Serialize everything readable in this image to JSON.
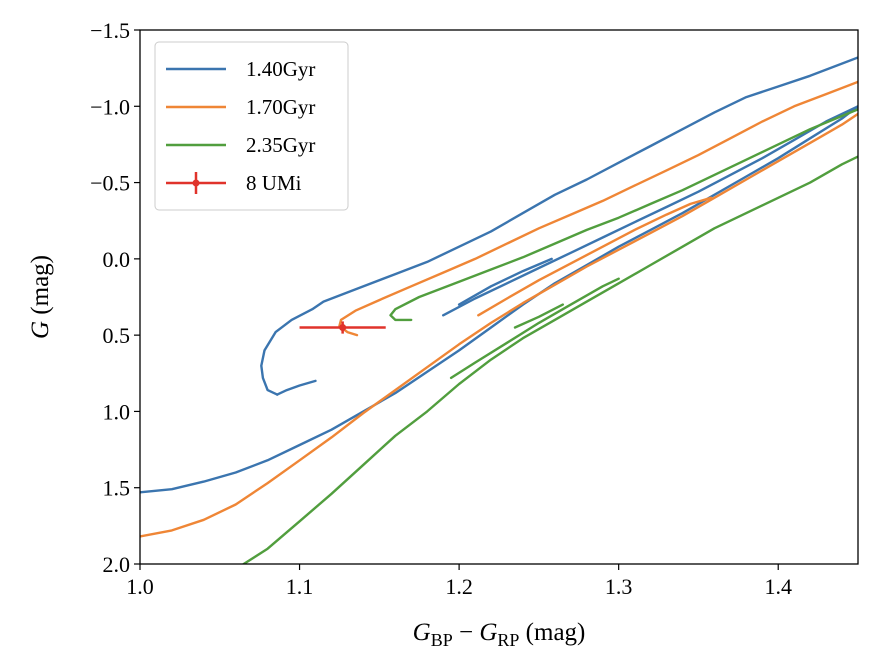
{
  "chart_data": {
    "type": "line",
    "title": "",
    "xlabel": {
      "main": "G",
      "sub1": "BP",
      "minus": " − ",
      "main2": "G",
      "sub2": "RP",
      "unit": " (mag)"
    },
    "ylabel": {
      "main": "G",
      "unit": " (mag)"
    },
    "xlim": [
      1.0,
      1.45
    ],
    "ylim": [
      2.0,
      -1.5
    ],
    "y_inverted": true,
    "grid": false,
    "legend_position": "top-left",
    "x_ticks": [
      1.0,
      1.1,
      1.2,
      1.3,
      1.4
    ],
    "x_tick_labels": [
      "1.0",
      "1.1",
      "1.2",
      "1.3",
      "1.4"
    ],
    "y_ticks": [
      -1.5,
      -1.0,
      -0.5,
      0.0,
      0.5,
      1.0,
      1.5,
      2.0
    ],
    "y_tick_labels": [
      "−1.5",
      "−1.0",
      "−0.5",
      "0.0",
      "0.5",
      "1.0",
      "1.5",
      "2.0"
    ],
    "series": [
      {
        "name": "1.40Gyr",
        "color": "#3b75af",
        "segments": [
          [
            [
              1.0,
              1.53
            ],
            [
              1.02,
              1.51
            ],
            [
              1.04,
              1.46
            ],
            [
              1.06,
              1.4
            ],
            [
              1.08,
              1.32
            ],
            [
              1.1,
              1.22
            ],
            [
              1.12,
              1.12
            ],
            [
              1.14,
              1.0
            ],
            [
              1.16,
              0.88
            ],
            [
              1.18,
              0.74
            ],
            [
              1.2,
              0.6
            ],
            [
              1.22,
              0.45
            ],
            [
              1.24,
              0.3
            ],
            [
              1.26,
              0.16
            ],
            [
              1.28,
              0.04
            ],
            [
              1.3,
              -0.08
            ],
            [
              1.32,
              -0.19
            ],
            [
              1.34,
              -0.3
            ],
            [
              1.36,
              -0.42
            ],
            [
              1.38,
              -0.54
            ],
            [
              1.4,
              -0.66
            ],
            [
              1.42,
              -0.79
            ],
            [
              1.44,
              -0.92
            ],
            [
              1.45,
              -1.0
            ]
          ],
          [
            [
              1.086,
              0.89
            ],
            [
              1.08,
              0.86
            ],
            [
              1.077,
              0.78
            ],
            [
              1.076,
              0.7
            ],
            [
              1.078,
              0.6
            ],
            [
              1.085,
              0.48
            ],
            [
              1.095,
              0.4
            ],
            [
              1.108,
              0.33
            ],
            [
              1.115,
              0.28
            ],
            [
              1.135,
              0.2
            ],
            [
              1.16,
              0.1
            ],
            [
              1.18,
              0.02
            ],
            [
              1.2,
              -0.08
            ],
            [
              1.22,
              -0.18
            ],
            [
              1.24,
              -0.3
            ],
            [
              1.26,
              -0.42
            ],
            [
              1.28,
              -0.52
            ],
            [
              1.3,
              -0.63
            ],
            [
              1.32,
              -0.74
            ],
            [
              1.34,
              -0.85
            ],
            [
              1.36,
              -0.96
            ],
            [
              1.38,
              -1.06
            ],
            [
              1.4,
              -1.13
            ],
            [
              1.42,
              -1.2
            ],
            [
              1.45,
              -1.32
            ]
          ],
          [
            [
              1.086,
              0.89
            ],
            [
              1.092,
              0.86
            ],
            [
              1.1,
              0.83
            ],
            [
              1.11,
              0.8
            ]
          ],
          [
            [
              1.19,
              0.37
            ],
            [
              1.21,
              0.26
            ],
            [
              1.23,
              0.16
            ],
            [
              1.25,
              0.06
            ],
            [
              1.27,
              -0.04
            ],
            [
              1.29,
              -0.14
            ],
            [
              1.31,
              -0.24
            ],
            [
              1.33,
              -0.34
            ],
            [
              1.35,
              -0.44
            ],
            [
              1.37,
              -0.55
            ],
            [
              1.39,
              -0.66
            ],
            [
              1.41,
              -0.78
            ],
            [
              1.43,
              -0.9
            ],
            [
              1.45,
              -1.0
            ]
          ],
          [
            [
              1.2,
              0.3
            ],
            [
              1.22,
              0.18
            ],
            [
              1.24,
              0.08
            ],
            [
              1.258,
              0.0
            ]
          ]
        ]
      },
      {
        "name": "1.70Gyr",
        "color": "#ef8636",
        "segments": [
          [
            [
              1.0,
              1.82
            ],
            [
              1.02,
              1.78
            ],
            [
              1.04,
              1.71
            ],
            [
              1.06,
              1.61
            ],
            [
              1.08,
              1.47
            ],
            [
              1.1,
              1.32
            ],
            [
              1.12,
              1.17
            ],
            [
              1.14,
              1.01
            ],
            [
              1.16,
              0.86
            ],
            [
              1.18,
              0.71
            ],
            [
              1.2,
              0.56
            ],
            [
              1.22,
              0.42
            ],
            [
              1.24,
              0.29
            ],
            [
              1.26,
              0.17
            ],
            [
              1.28,
              0.05
            ],
            [
              1.3,
              -0.06
            ],
            [
              1.32,
              -0.17
            ],
            [
              1.34,
              -0.28
            ],
            [
              1.36,
              -0.4
            ],
            [
              1.38,
              -0.52
            ],
            [
              1.4,
              -0.64
            ],
            [
              1.42,
              -0.76
            ],
            [
              1.44,
              -0.88
            ],
            [
              1.45,
              -0.95
            ]
          ],
          [
            [
              1.136,
              0.5
            ],
            [
              1.13,
              0.48
            ],
            [
              1.125,
              0.44
            ],
            [
              1.126,
              0.4
            ],
            [
              1.135,
              0.34
            ],
            [
              1.15,
              0.27
            ],
            [
              1.17,
              0.18
            ],
            [
              1.19,
              0.09
            ],
            [
              1.21,
              0.0
            ],
            [
              1.23,
              -0.1
            ],
            [
              1.25,
              -0.2
            ],
            [
              1.27,
              -0.29
            ],
            [
              1.29,
              -0.38
            ],
            [
              1.31,
              -0.48
            ],
            [
              1.33,
              -0.58
            ],
            [
              1.35,
              -0.68
            ],
            [
              1.37,
              -0.79
            ],
            [
              1.39,
              -0.9
            ],
            [
              1.41,
              -1.0
            ],
            [
              1.43,
              -1.08
            ],
            [
              1.45,
              -1.16
            ]
          ],
          [
            [
              1.212,
              0.37
            ],
            [
              1.23,
              0.26
            ],
            [
              1.25,
              0.14
            ],
            [
              1.27,
              0.03
            ],
            [
              1.29,
              -0.08
            ],
            [
              1.31,
              -0.19
            ],
            [
              1.33,
              -0.29
            ],
            [
              1.345,
              -0.36
            ],
            [
              1.358,
              -0.4
            ]
          ]
        ]
      },
      {
        "name": "2.35Gyr",
        "color": "#519e3e",
        "segments": [
          [
            [
              1.065,
              2.0
            ],
            [
              1.08,
              1.9
            ],
            [
              1.1,
              1.72
            ],
            [
              1.12,
              1.54
            ],
            [
              1.14,
              1.35
            ],
            [
              1.16,
              1.16
            ],
            [
              1.18,
              1.0
            ],
            [
              1.2,
              0.82
            ],
            [
              1.22,
              0.66
            ],
            [
              1.24,
              0.52
            ],
            [
              1.26,
              0.4
            ],
            [
              1.28,
              0.28
            ],
            [
              1.3,
              0.16
            ],
            [
              1.32,
              0.04
            ],
            [
              1.34,
              -0.08
            ],
            [
              1.36,
              -0.2
            ],
            [
              1.38,
              -0.3
            ],
            [
              1.4,
              -0.4
            ],
            [
              1.42,
              -0.5
            ],
            [
              1.44,
              -0.62
            ],
            [
              1.45,
              -0.67
            ]
          ],
          [
            [
              1.17,
              0.4
            ],
            [
              1.16,
              0.4
            ],
            [
              1.157,
              0.37
            ],
            [
              1.16,
              0.33
            ],
            [
              1.175,
              0.25
            ],
            [
              1.2,
              0.15
            ],
            [
              1.22,
              0.07
            ],
            [
              1.24,
              -0.01
            ],
            [
              1.26,
              -0.1
            ],
            [
              1.28,
              -0.19
            ],
            [
              1.3,
              -0.27
            ],
            [
              1.32,
              -0.36
            ],
            [
              1.34,
              -0.45
            ],
            [
              1.36,
              -0.55
            ],
            [
              1.38,
              -0.65
            ],
            [
              1.4,
              -0.75
            ],
            [
              1.42,
              -0.85
            ],
            [
              1.45,
              -0.98
            ]
          ],
          [
            [
              1.195,
              0.78
            ],
            [
              1.21,
              0.68
            ],
            [
              1.23,
              0.55
            ],
            [
              1.25,
              0.42
            ],
            [
              1.27,
              0.3
            ],
            [
              1.29,
              0.18
            ],
            [
              1.3,
              0.13
            ]
          ],
          [
            [
              1.235,
              0.45
            ],
            [
              1.25,
              0.38
            ],
            [
              1.265,
              0.3
            ]
          ]
        ]
      }
    ],
    "point": {
      "name": "8 UMi",
      "color": "#e0332b",
      "x": 1.127,
      "y": 0.45,
      "xerr_low": 0.027,
      "xerr_high": 0.027,
      "yerr_low": 0.04,
      "yerr_high": 0.04
    },
    "legend": [
      "1.40Gyr",
      "1.70Gyr",
      "2.35Gyr",
      "8 UMi"
    ]
  }
}
